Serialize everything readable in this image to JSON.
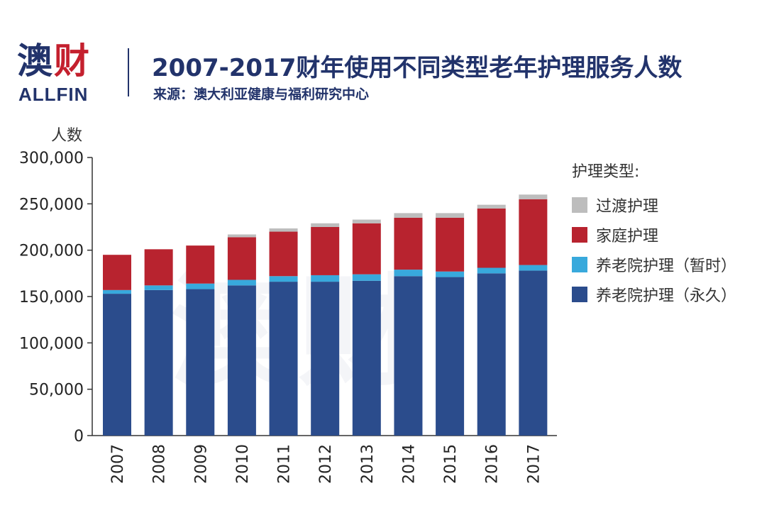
{
  "brand": {
    "logo_cn_main": "澳",
    "logo_cn_accent": "财",
    "logo_en": "ALLFIN"
  },
  "header": {
    "title": "2007-2017财年使用不同类型老年护理服务人数",
    "subtitle": "来源：澳大利亚健康与福利研究中心"
  },
  "colors": {
    "permanent": "#2b4c8c",
    "respite": "#38a9dc",
    "home": "#b8232f",
    "transition": "#bdbdbd"
  },
  "chart_data": {
    "type": "bar",
    "stacked": true,
    "ylabel": "人数",
    "ylim": [
      0,
      300000
    ],
    "yticks": [
      0,
      50000,
      100000,
      150000,
      200000,
      250000,
      300000
    ],
    "ytick_labels": [
      "0",
      "50,000",
      "100,000",
      "150,000",
      "200,000",
      "250,000",
      "300,000"
    ],
    "categories": [
      "2007",
      "2008",
      "2009",
      "2010",
      "2011",
      "2012",
      "2013",
      "2014",
      "2015",
      "2016",
      "2017"
    ],
    "legend_title": "护理类型:",
    "legend_position": "right",
    "legend": [
      "过渡护理",
      "家庭护理",
      "养老院护理（暂时）",
      "养老院护理（永久）"
    ],
    "series": [
      {
        "name": "养老院护理（永久）",
        "color_key": "permanent",
        "values": [
          153000,
          157000,
          158000,
          162000,
          166000,
          166000,
          167000,
          172000,
          171000,
          175000,
          178000
        ]
      },
      {
        "name": "养老院护理（暂时）",
        "color_key": "respite",
        "values": [
          4000,
          5000,
          6000,
          6000,
          6000,
          7000,
          7000,
          7000,
          6000,
          6000,
          6000
        ]
      },
      {
        "name": "家庭护理",
        "color_key": "home",
        "values": [
          38000,
          39000,
          41000,
          46000,
          48000,
          52000,
          55000,
          56000,
          58000,
          64000,
          71000
        ]
      },
      {
        "name": "过渡护理",
        "color_key": "transition",
        "values": [
          0,
          0,
          0,
          3000,
          3500,
          4000,
          4000,
          5000,
          5000,
          4000,
          5000
        ]
      }
    ]
  }
}
